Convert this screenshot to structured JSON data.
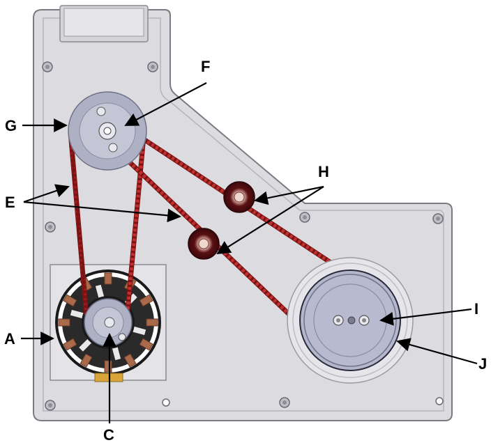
{
  "labels": {
    "A": "A",
    "C": "C",
    "E": "E",
    "F": "F",
    "G": "G",
    "H": "H",
    "I": "I",
    "J": "J"
  },
  "colors": {
    "plate": "#dcdce0",
    "plate_edge": "#7a7a80",
    "belt": "#a11a1a",
    "pulley": "#aeb0c4",
    "motor_dark": "#1a1a1a",
    "coil": "#a86a4a",
    "arrow": "#000000"
  },
  "icons": {
    "motor": "stepper-motor-icon",
    "pulley": "pulley-icon",
    "idler": "idler-roller-icon",
    "spool": "spool-drum-icon"
  }
}
